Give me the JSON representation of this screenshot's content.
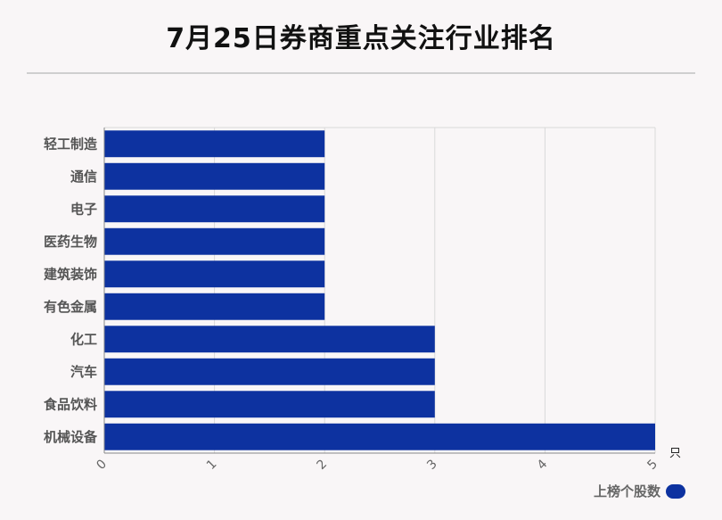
{
  "chart_data": {
    "type": "bar",
    "orientation": "horizontal",
    "title": "7月25日券商重点关注行业排名",
    "categories": [
      "轻工制造",
      "通信",
      "电子",
      "医药生物",
      "建筑装饰",
      "有色金属",
      "化工",
      "汽车",
      "食品饮料",
      "机械设备"
    ],
    "series": [
      {
        "name": "上榜个股数",
        "values": [
          2,
          2,
          2,
          2,
          2,
          2,
          3,
          3,
          3,
          5
        ]
      }
    ],
    "xlim": [
      0,
      5
    ],
    "xticks": [
      "0",
      "1",
      "2",
      "3",
      "4",
      "5"
    ],
    "xunit": "只",
    "grid": true,
    "legend_position": "bottom-right",
    "bar_color": "#0d32a0"
  }
}
